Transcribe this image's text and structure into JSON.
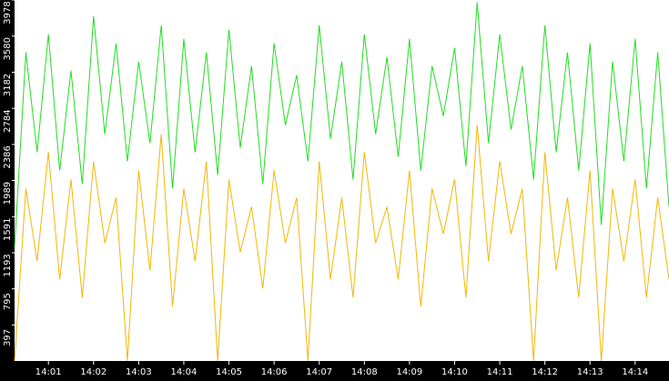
{
  "chart_data": {
    "type": "line",
    "title": "",
    "xlabel": "",
    "ylabel": "",
    "ylim": [
      0,
      3978
    ],
    "xlim": [
      "14:00:15",
      "14:14:45"
    ],
    "grid": false,
    "legend": "none",
    "y_ticks": [
      "397",
      "795",
      "1193",
      "1591",
      "1989",
      "2386",
      "2784",
      "3182",
      "3580",
      "3978"
    ],
    "x_ticks": [
      "14:01",
      "14:02",
      "14:03",
      "14:04",
      "14:05",
      "14:06",
      "14:07",
      "14:08",
      "14:09",
      "14:10",
      "14:11",
      "14:12",
      "14:13",
      "14:14"
    ],
    "x_tick_values": [
      "14:01:00",
      "14:02:00",
      "14:03:00",
      "14:04:00",
      "14:05:00",
      "14:06:00",
      "14:07:00",
      "14:08:00",
      "14:09:00",
      "14:10:00",
      "14:11:00",
      "14:12:00",
      "14:13:00",
      "14:14:00"
    ],
    "colors": {
      "background": "#000000",
      "axis_text": "#ffffff",
      "plot_background": "#ffffff"
    },
    "series": [
      {
        "color": "#22dd22",
        "x": [
          "14:00:15",
          "14:00:30",
          "14:00:45",
          "14:01:00",
          "14:01:15",
          "14:01:30",
          "14:01:45",
          "14:02:00",
          "14:02:15",
          "14:02:30",
          "14:02:45",
          "14:03:00",
          "14:03:15",
          "14:03:30",
          "14:03:45",
          "14:04:00",
          "14:04:15",
          "14:04:30",
          "14:04:45",
          "14:05:00",
          "14:05:15",
          "14:05:30",
          "14:05:45",
          "14:06:00",
          "14:06:15",
          "14:06:30",
          "14:06:45",
          "14:07:00",
          "14:07:15",
          "14:07:30",
          "14:07:45",
          "14:08:00",
          "14:08:15",
          "14:08:30",
          "14:08:45",
          "14:09:00",
          "14:09:15",
          "14:09:30",
          "14:09:45",
          "14:10:00",
          "14:10:15",
          "14:10:30",
          "14:10:45",
          "14:11:00",
          "14:11:15",
          "14:11:30",
          "14:11:45",
          "14:12:00",
          "14:12:15",
          "14:12:30",
          "14:12:45",
          "14:13:00",
          "14:13:15",
          "14:13:30",
          "14:13:45",
          "14:14:00",
          "14:14:15",
          "14:14:30",
          "14:14:45"
        ],
        "values": [
          1250,
          3400,
          2300,
          3600,
          2100,
          3200,
          1950,
          3800,
          2500,
          3500,
          2200,
          3300,
          2400,
          3700,
          1900,
          3550,
          2300,
          3400,
          2050,
          3650,
          2350,
          3250,
          1950,
          3500,
          2600,
          3150,
          2200,
          3700,
          2450,
          3300,
          2000,
          3600,
          2500,
          3350,
          2250,
          3550,
          2100,
          3250,
          2700,
          3450,
          2150,
          3950,
          2400,
          3600,
          2550,
          3250,
          2000,
          3700,
          2300,
          3400,
          2100,
          3500,
          1500,
          3300,
          2200,
          3550,
          1900,
          3400,
          1700
        ]
      },
      {
        "color": "#f2b705",
        "x": [
          "14:00:15",
          "14:00:30",
          "14:00:45",
          "14:01:00",
          "14:01:15",
          "14:01:30",
          "14:01:45",
          "14:02:00",
          "14:02:15",
          "14:02:30",
          "14:02:45",
          "14:03:00",
          "14:03:15",
          "14:03:30",
          "14:03:45",
          "14:04:00",
          "14:04:15",
          "14:04:30",
          "14:04:45",
          "14:05:00",
          "14:05:15",
          "14:05:30",
          "14:05:45",
          "14:06:00",
          "14:06:15",
          "14:06:30",
          "14:06:45",
          "14:07:00",
          "14:07:15",
          "14:07:30",
          "14:07:45",
          "14:08:00",
          "14:08:15",
          "14:08:30",
          "14:08:45",
          "14:09:00",
          "14:09:15",
          "14:09:30",
          "14:09:45",
          "14:10:00",
          "14:10:15",
          "14:10:30",
          "14:10:45",
          "14:11:00",
          "14:11:15",
          "14:11:30",
          "14:11:45",
          "14:12:00",
          "14:12:15",
          "14:12:30",
          "14:12:45",
          "14:13:00",
          "14:13:15",
          "14:13:30",
          "14:13:45",
          "14:14:00",
          "14:14:15",
          "14:14:30",
          "14:14:45"
        ],
        "values": [
          0,
          1900,
          1100,
          2300,
          900,
          2000,
          700,
          2200,
          1300,
          1800,
          0,
          2100,
          1000,
          2500,
          600,
          1900,
          1100,
          2200,
          0,
          2000,
          1200,
          1700,
          800,
          2100,
          1300,
          1800,
          0,
          2200,
          900,
          1800,
          700,
          2300,
          1300,
          1700,
          900,
          2100,
          600,
          1900,
          1400,
          2000,
          700,
          2600,
          1100,
          2200,
          1400,
          1900,
          0,
          2300,
          1000,
          1800,
          700,
          2100,
          0,
          1900,
          1100,
          2000,
          700,
          1800,
          900
        ]
      }
    ]
  }
}
